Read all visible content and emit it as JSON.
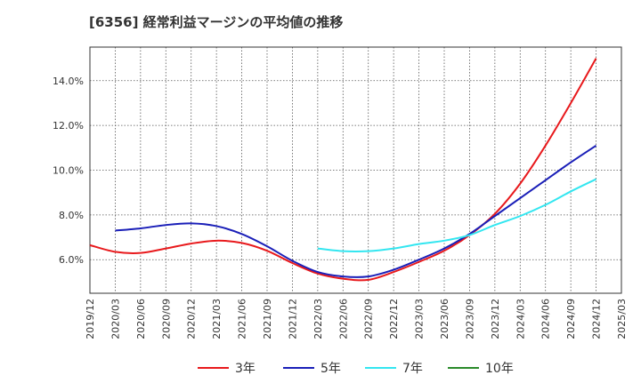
{
  "chart_data": {
    "type": "line",
    "title": "[6356]  経常利益マージンの平均値の推移",
    "xlabel": "",
    "ylabel": "",
    "grid": true,
    "legend_position": "bottom",
    "x_ticks": [
      "2019/12",
      "2020/03",
      "2020/06",
      "2020/09",
      "2020/12",
      "2021/03",
      "2021/06",
      "2021/09",
      "2021/12",
      "2022/03",
      "2022/06",
      "2022/09",
      "2022/12",
      "2023/03",
      "2023/06",
      "2023/09",
      "2023/12",
      "2024/03",
      "2024/06",
      "2024/09",
      "2024/12",
      "2025/03"
    ],
    "y_ticks": [
      "6.0%",
      "8.0%",
      "10.0%",
      "12.0%",
      "14.0%"
    ],
    "y_tick_values": [
      6,
      8,
      10,
      12,
      14
    ],
    "ylim": [
      4.5,
      15.5
    ],
    "x": [
      "2019/12",
      "2020/03",
      "2020/06",
      "2020/09",
      "2020/12",
      "2021/03",
      "2021/06",
      "2021/09",
      "2021/12",
      "2022/03",
      "2022/06",
      "2022/09",
      "2022/12",
      "2023/03",
      "2023/06",
      "2023/09",
      "2023/12",
      "2024/03",
      "2024/06",
      "2024/09",
      "2024/12"
    ],
    "series": [
      {
        "name": "3年",
        "color": "#e8191c",
        "values": [
          6.65,
          6.35,
          6.3,
          6.5,
          6.72,
          6.85,
          6.75,
          6.4,
          5.85,
          5.38,
          5.15,
          5.1,
          5.45,
          5.9,
          6.4,
          7.1,
          8.05,
          9.4,
          11.1,
          13.0,
          15.0
        ]
      },
      {
        "name": "5年",
        "color": "#1a1fb8",
        "values": [
          null,
          7.3,
          7.4,
          7.55,
          7.62,
          7.5,
          7.15,
          6.6,
          5.95,
          5.45,
          5.25,
          5.25,
          5.55,
          6.0,
          6.5,
          7.15,
          7.95,
          8.75,
          9.55,
          10.35,
          11.1
        ]
      },
      {
        "name": "7年",
        "color": "#33e6f0",
        "values": [
          null,
          null,
          null,
          null,
          null,
          null,
          null,
          null,
          null,
          6.5,
          6.38,
          6.38,
          6.5,
          6.7,
          6.85,
          7.1,
          7.55,
          7.95,
          8.45,
          9.05,
          9.6
        ]
      },
      {
        "name": "10年",
        "color": "#2a8a2a",
        "values": [
          null,
          null,
          null,
          null,
          null,
          null,
          null,
          null,
          null,
          null,
          null,
          null,
          null,
          null,
          null,
          null,
          null,
          null,
          null,
          null,
          null
        ]
      }
    ]
  }
}
